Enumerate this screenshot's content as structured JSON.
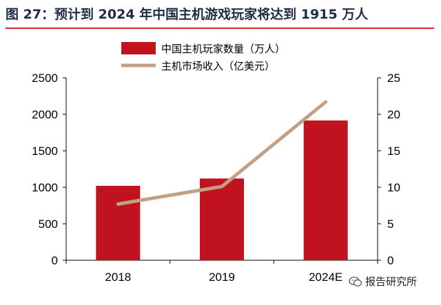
{
  "figure": {
    "title": "图 27：预计到 2024 年中国主机游戏玩家将达到 1915 万人",
    "watermark": "报告研究所"
  },
  "colors": {
    "bar": "#c1121f",
    "line": "#c2a183",
    "title_rule": "#d8232a",
    "title_text": "#1f2a44"
  },
  "chart_data": {
    "type": "bar",
    "categories": [
      "2018",
      "2019",
      "2024E"
    ],
    "series": [
      {
        "name": "中国主机玩家数量（万人）",
        "type": "bar",
        "axis": "left",
        "values": [
          1020,
          1120,
          1915
        ]
      },
      {
        "name": "主机市场收入（亿美元）",
        "type": "line",
        "axis": "right",
        "values": [
          7.7,
          10.1,
          21.7
        ]
      }
    ],
    "y_left": {
      "range": [
        0,
        2500
      ],
      "ticks": [
        "0",
        "500",
        "1000",
        "1500",
        "2000",
        "2500"
      ]
    },
    "y_right": {
      "range": [
        0,
        25
      ],
      "ticks": [
        "0",
        "5",
        "10",
        "15",
        "20",
        "25"
      ]
    },
    "grid": false,
    "legend_position": "top-center"
  }
}
